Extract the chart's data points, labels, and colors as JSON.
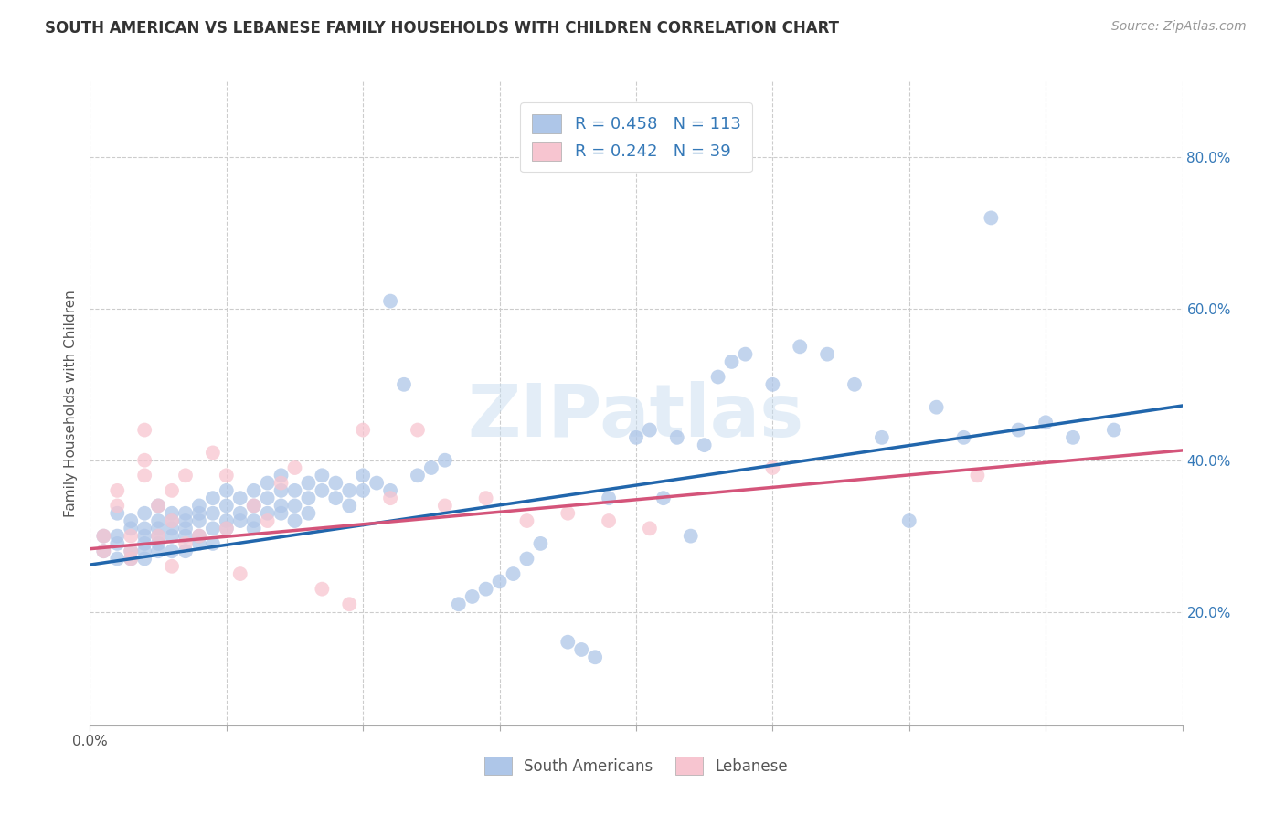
{
  "title": "SOUTH AMERICAN VS LEBANESE FAMILY HOUSEHOLDS WITH CHILDREN CORRELATION CHART",
  "source": "Source: ZipAtlas.com",
  "ylabel": "Family Households with Children",
  "xlim": [
    0.0,
    0.8
  ],
  "ylim": [
    0.05,
    0.9
  ],
  "xtick_positions": [
    0.0,
    0.1,
    0.2,
    0.3,
    0.4,
    0.5,
    0.6,
    0.7,
    0.8
  ],
  "xtick_labels_show": {
    "0.0": "0.0%",
    "0.80": "80.0%"
  },
  "yticks_right": [
    0.2,
    0.4,
    0.6,
    0.8
  ],
  "yticklabels_right": [
    "20.0%",
    "40.0%",
    "60.0%",
    "80.0%"
  ],
  "blue_color": "#aec6e8",
  "blue_edge_color": "#6baed6",
  "blue_line_color": "#2166ac",
  "pink_color": "#f7c5d0",
  "pink_edge_color": "#e8829a",
  "pink_line_color": "#d4547a",
  "blue_R": 0.458,
  "blue_N": 113,
  "pink_R": 0.242,
  "pink_N": 39,
  "legend_text_color": "#3579b8",
  "watermark": "ZIPatlas",
  "title_fontsize": 12,
  "source_fontsize": 10,
  "blue_scatter_x": [
    0.01,
    0.01,
    0.02,
    0.02,
    0.02,
    0.02,
    0.03,
    0.03,
    0.03,
    0.03,
    0.04,
    0.04,
    0.04,
    0.04,
    0.04,
    0.04,
    0.05,
    0.05,
    0.05,
    0.05,
    0.05,
    0.05,
    0.06,
    0.06,
    0.06,
    0.06,
    0.06,
    0.07,
    0.07,
    0.07,
    0.07,
    0.07,
    0.08,
    0.08,
    0.08,
    0.08,
    0.08,
    0.09,
    0.09,
    0.09,
    0.09,
    0.1,
    0.1,
    0.1,
    0.1,
    0.11,
    0.11,
    0.11,
    0.12,
    0.12,
    0.12,
    0.12,
    0.13,
    0.13,
    0.13,
    0.14,
    0.14,
    0.14,
    0.14,
    0.15,
    0.15,
    0.15,
    0.16,
    0.16,
    0.16,
    0.17,
    0.17,
    0.18,
    0.18,
    0.19,
    0.19,
    0.2,
    0.2,
    0.21,
    0.22,
    0.22,
    0.23,
    0.24,
    0.25,
    0.26,
    0.27,
    0.28,
    0.29,
    0.3,
    0.31,
    0.32,
    0.33,
    0.35,
    0.36,
    0.37,
    0.38,
    0.4,
    0.41,
    0.42,
    0.43,
    0.44,
    0.45,
    0.46,
    0.47,
    0.48,
    0.5,
    0.52,
    0.54,
    0.56,
    0.58,
    0.6,
    0.62,
    0.64,
    0.66,
    0.68,
    0.7,
    0.72,
    0.75
  ],
  "blue_scatter_y": [
    0.28,
    0.3,
    0.27,
    0.33,
    0.29,
    0.3,
    0.31,
    0.28,
    0.32,
    0.27,
    0.29,
    0.33,
    0.3,
    0.28,
    0.31,
    0.27,
    0.3,
    0.32,
    0.28,
    0.34,
    0.29,
    0.31,
    0.32,
    0.3,
    0.28,
    0.33,
    0.31,
    0.33,
    0.3,
    0.32,
    0.28,
    0.31,
    0.34,
    0.32,
    0.3,
    0.29,
    0.33,
    0.35,
    0.33,
    0.31,
    0.29,
    0.36,
    0.34,
    0.32,
    0.31,
    0.35,
    0.33,
    0.32,
    0.36,
    0.34,
    0.32,
    0.31,
    0.37,
    0.35,
    0.33,
    0.38,
    0.36,
    0.34,
    0.33,
    0.36,
    0.34,
    0.32,
    0.37,
    0.35,
    0.33,
    0.38,
    0.36,
    0.37,
    0.35,
    0.36,
    0.34,
    0.38,
    0.36,
    0.37,
    0.61,
    0.36,
    0.5,
    0.38,
    0.39,
    0.4,
    0.21,
    0.22,
    0.23,
    0.24,
    0.25,
    0.27,
    0.29,
    0.16,
    0.15,
    0.14,
    0.35,
    0.43,
    0.44,
    0.35,
    0.43,
    0.3,
    0.42,
    0.51,
    0.53,
    0.54,
    0.5,
    0.55,
    0.54,
    0.5,
    0.43,
    0.32,
    0.47,
    0.43,
    0.72,
    0.44,
    0.45,
    0.43,
    0.44
  ],
  "pink_scatter_x": [
    0.01,
    0.01,
    0.02,
    0.02,
    0.03,
    0.03,
    0.03,
    0.04,
    0.04,
    0.04,
    0.05,
    0.05,
    0.06,
    0.06,
    0.06,
    0.07,
    0.07,
    0.08,
    0.09,
    0.1,
    0.1,
    0.11,
    0.12,
    0.13,
    0.14,
    0.15,
    0.17,
    0.19,
    0.2,
    0.22,
    0.24,
    0.26,
    0.29,
    0.32,
    0.35,
    0.38,
    0.41,
    0.5,
    0.65
  ],
  "pink_scatter_y": [
    0.3,
    0.28,
    0.36,
    0.34,
    0.3,
    0.28,
    0.27,
    0.44,
    0.4,
    0.38,
    0.3,
    0.34,
    0.32,
    0.26,
    0.36,
    0.29,
    0.38,
    0.3,
    0.41,
    0.31,
    0.38,
    0.25,
    0.34,
    0.32,
    0.37,
    0.39,
    0.23,
    0.21,
    0.44,
    0.35,
    0.44,
    0.34,
    0.35,
    0.32,
    0.33,
    0.32,
    0.31,
    0.39,
    0.38
  ],
  "blue_line_x": [
    0.0,
    0.8
  ],
  "blue_line_y_start": 0.262,
  "blue_line_y_end": 0.472,
  "pink_line_x": [
    0.0,
    0.8
  ],
  "pink_line_y_start": 0.283,
  "pink_line_y_end": 0.413
}
